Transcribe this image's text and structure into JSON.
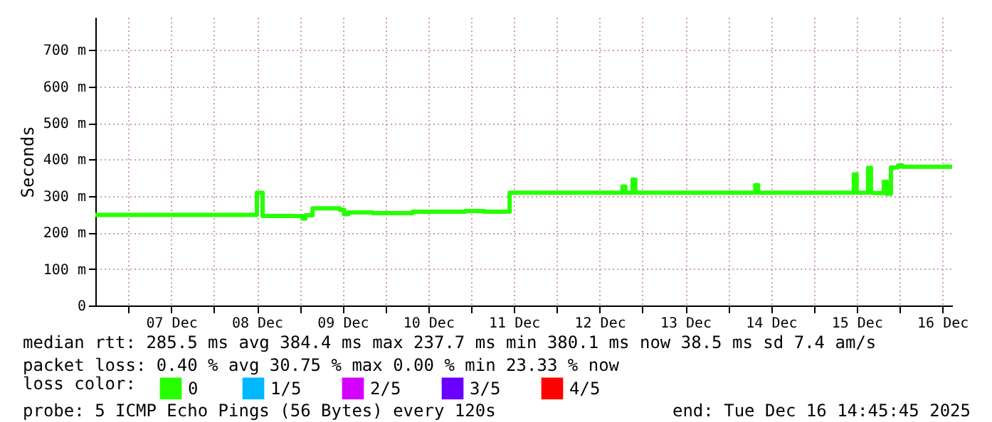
{
  "chart_data": {
    "type": "step",
    "ylabel": "Seconds",
    "legend_title": "loss color:",
    "legend": "bottom",
    "grid": true,
    "marker": "none",
    "line_style": "solid",
    "x": [
      "2025-12-06T14:45",
      "2025-12-08T12:00",
      "2025-12-08T13:36",
      "2025-12-09T00:48",
      "2025-12-09T01:36",
      "2025-12-09T03:36",
      "2025-12-09T11:12",
      "2025-12-09T12:24",
      "2025-12-09T13:36",
      "2025-12-09T20:24",
      "2025-12-10T07:36",
      "2025-12-10T22:24",
      "2025-12-11T03:36",
      "2025-12-11T10:48",
      "2025-12-12T18:24",
      "2025-12-12T19:12",
      "2025-12-12T21:12",
      "2025-12-12T22:00",
      "2025-12-14T07:36",
      "2025-12-14T08:24",
      "2025-12-15T11:12",
      "2025-12-15T12:00",
      "2025-12-15T15:12",
      "2025-12-15T16:00",
      "2025-12-15T16:48",
      "2025-12-15T19:36",
      "2025-12-15T20:24",
      "2025-12-15T21:36",
      "2025-12-15T23:36",
      "2025-12-16T00:48",
      "2025-12-16T14:45"
    ],
    "series": [
      {
        "name": "0",
        "color": "#26ff00",
        "values": [
          248,
          309,
          245,
          238,
          247,
          266,
          262,
          250,
          255,
          253,
          257,
          259,
          257,
          309,
          326,
          309,
          345,
          309,
          330,
          309,
          359,
          309,
          377,
          309,
          308,
          339,
          306,
          378,
          384,
          380,
          380
        ]
      },
      {
        "name": "1/5",
        "color": "#00b8ff",
        "values": [
          null,
          null,
          null,
          null,
          null,
          null,
          null,
          null,
          null,
          null,
          null,
          null,
          null,
          null,
          null,
          null,
          null,
          null,
          null,
          null,
          null,
          null,
          null,
          null,
          null,
          null,
          null,
          null,
          null,
          null,
          null
        ]
      },
      {
        "name": "2/5",
        "color": "#d400ff",
        "values": [
          null,
          null,
          null,
          null,
          null,
          null,
          null,
          null,
          null,
          null,
          null,
          null,
          null,
          null,
          null,
          null,
          null,
          null,
          null,
          null,
          null,
          null,
          null,
          null,
          null,
          null,
          null,
          null,
          null,
          null,
          null
        ]
      },
      {
        "name": "3/5",
        "color": "#6a00ff",
        "values": [
          null,
          null,
          null,
          null,
          null,
          null,
          null,
          null,
          null,
          null,
          null,
          null,
          null,
          null,
          null,
          null,
          null,
          null,
          null,
          null,
          null,
          null,
          null,
          null,
          null,
          null,
          null,
          null,
          null,
          null,
          null
        ]
      },
      {
        "name": "4/5",
        "color": "#ff0000",
        "values": [
          null,
          null,
          null,
          null,
          null,
          null,
          null,
          null,
          null,
          null,
          null,
          null,
          null,
          null,
          null,
          null,
          null,
          null,
          null,
          null,
          null,
          null,
          null,
          null,
          null,
          null,
          null,
          null,
          null,
          null,
          null
        ]
      }
    ],
    "xlim": [
      "2025-12-06T14:45",
      "2025-12-16T14:45"
    ],
    "xticks": [
      {
        "value": "2025-12-07T00:00",
        "label": null
      },
      {
        "value": "2025-12-07T12:00",
        "label": "07 Dec"
      },
      {
        "value": "2025-12-08T00:00",
        "label": null
      },
      {
        "value": "2025-12-08T12:00",
        "label": "08 Dec"
      },
      {
        "value": "2025-12-09T00:00",
        "label": null
      },
      {
        "value": "2025-12-09T12:00",
        "label": "09 Dec"
      },
      {
        "value": "2025-12-10T00:00",
        "label": null
      },
      {
        "value": "2025-12-10T12:00",
        "label": "10 Dec"
      },
      {
        "value": "2025-12-11T00:00",
        "label": null
      },
      {
        "value": "2025-12-11T12:00",
        "label": "11 Dec"
      },
      {
        "value": "2025-12-12T00:00",
        "label": null
      },
      {
        "value": "2025-12-12T12:00",
        "label": "12 Dec"
      },
      {
        "value": "2025-12-13T00:00",
        "label": null
      },
      {
        "value": "2025-12-13T12:00",
        "label": "13 Dec"
      },
      {
        "value": "2025-12-14T00:00",
        "label": null
      },
      {
        "value": "2025-12-14T12:00",
        "label": "14 Dec"
      },
      {
        "value": "2025-12-15T00:00",
        "label": null
      },
      {
        "value": "2025-12-15T12:00",
        "label": "15 Dec"
      },
      {
        "value": "2025-12-16T00:00",
        "label": null
      },
      {
        "value": "2025-12-16T12:00",
        "label": "16 Dec"
      }
    ],
    "ylim": [
      0,
      790
    ],
    "yticks": [
      0,
      {
        "value": 100,
        "label": "100 m"
      },
      {
        "value": 200,
        "label": "200 m"
      },
      {
        "value": 300,
        "label": "300 m"
      },
      {
        "value": 400,
        "label": "400 m"
      },
      {
        "value": 500,
        "label": "500 m"
      },
      {
        "value": 600,
        "label": "600 m"
      },
      {
        "value": 700,
        "label": "700 m"
      }
    ],
    "annotations": [
      "median rtt:  285.5 ms avg  384.4 ms max  237.7 ms min  380.1 ms now  38.5 ms sd  7.4   am/s",
      "packet loss: 0.40 % avg  30.75 % max  0.00 % min  23.33 % now",
      "probe:       5 ICMP Echo Pings (56 Bytes) every 120s",
      "end: Tue Dec 16 14:45:45 2025"
    ]
  }
}
